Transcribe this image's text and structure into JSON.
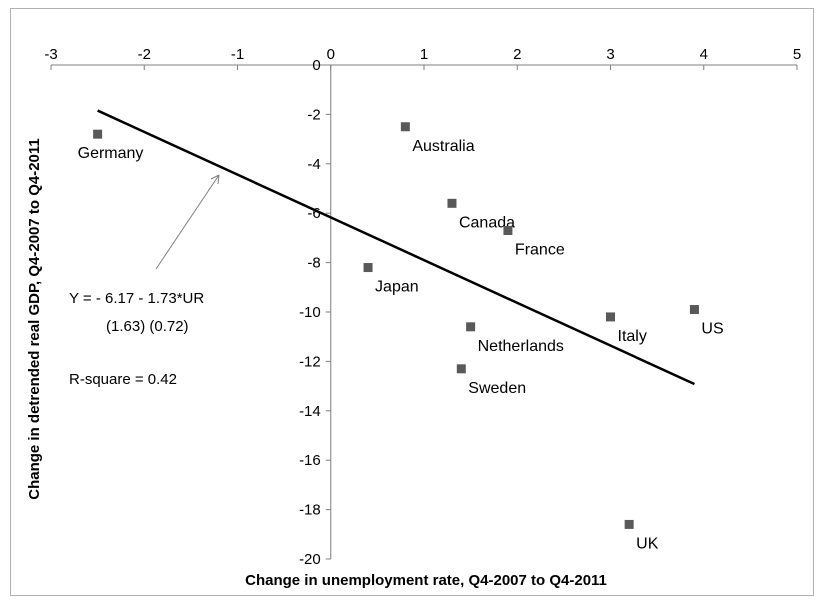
{
  "chart_data": {
    "type": "scatter",
    "title": "",
    "xlabel": "Change in unemployment rate, Q4-2007 to Q4-2011",
    "ylabel": "Change in detrended real GDP, Q4-2007 to Q4-2011",
    "xlim": [
      -3,
      5
    ],
    "ylim": [
      -20,
      0
    ],
    "xticks": [
      -3,
      -2,
      -1,
      0,
      1,
      2,
      3,
      4,
      5
    ],
    "yticks": [
      0,
      -2,
      -4,
      -6,
      -8,
      -10,
      -12,
      -14,
      -16,
      -18,
      -20
    ],
    "grid": false,
    "marker_color": "#595959",
    "line_color": "#000000",
    "points": [
      {
        "label": "Germany",
        "x": -2.5,
        "y": -2.8
      },
      {
        "label": "Australia",
        "x": 0.8,
        "y": -2.5
      },
      {
        "label": "Canada",
        "x": 1.3,
        "y": -5.6
      },
      {
        "label": "France",
        "x": 1.9,
        "y": -6.7
      },
      {
        "label": "Japan",
        "x": 0.4,
        "y": -8.2
      },
      {
        "label": "Italy",
        "x": 3.0,
        "y": -10.2
      },
      {
        "label": "US",
        "x": 3.9,
        "y": -9.9
      },
      {
        "label": "Netherlands",
        "x": 1.5,
        "y": -10.6
      },
      {
        "label": "Sweden",
        "x": 1.4,
        "y": -12.3
      },
      {
        "label": "UK",
        "x": 3.2,
        "y": -18.6
      }
    ],
    "fit_line": {
      "intercept": -6.17,
      "slope": -1.73,
      "x_range": [
        -2.5,
        3.9
      ]
    },
    "annotations": {
      "equation": "Y = - 6.17 -  1.73*UR",
      "std_errors": "(1.63)  (0.72)",
      "r_square": "R-square = 0.42"
    }
  }
}
